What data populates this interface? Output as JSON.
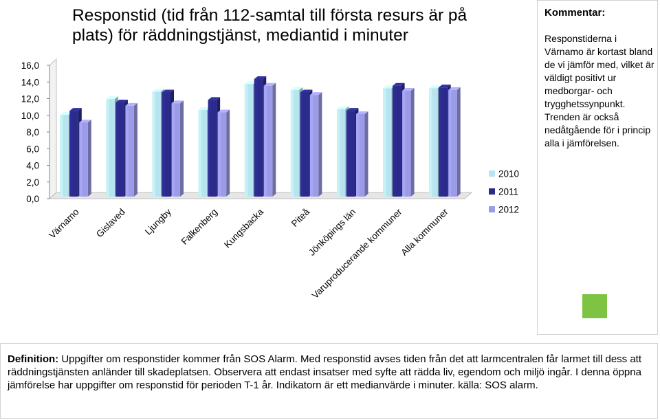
{
  "title": "Responstid (tid från 112-samtal till första resurs är på plats) för räddningstjänst, mediantid i minuter",
  "comment": {
    "heading": "Kommentar:",
    "text": "Responstiderna i Värnamo är kortast bland de vi jämför med, vilket är väldigt positivt ur medborgar- och trygghetssynpunkt. Trenden är också nedåtgående för i princip alla i jämförelsen.",
    "indicator_color": "#7cc442"
  },
  "definition": {
    "label": "Definition:",
    "text": "Uppgifter om responstider kommer från SOS Alarm. Med responstid avses tiden från det att larmcentralen får larmet till dess att räddningstjänsten anländer till skadeplatsen. Observera att endast insatser med syfte att rädda liv, egendom och miljö ingår. I denna öppna jämförelse har uppgifter om responstid för perioden T-1 år. Indikatorn är ett medianvärde i minuter. källa: SOS alarm."
  },
  "chart_data": {
    "type": "bar",
    "style": "3d-clustered-column",
    "categories": [
      "Värnamo",
      "Gislaved",
      "Ljungby",
      "Falkenberg",
      "Kungsbacka",
      "Piteå",
      "Jönköpings län",
      "Varuproducerande kommuner",
      "Alla kommuner"
    ],
    "series": [
      {
        "name": "2010",
        "color": "#b7e4ee",
        "values": [
          9.8,
          11.7,
          12.6,
          10.4,
          13.5,
          12.8,
          10.5,
          13.0,
          13.0
        ]
      },
      {
        "name": "2011",
        "color": "#2b2b8c",
        "values": [
          10.3,
          11.3,
          12.5,
          11.6,
          14.1,
          12.5,
          10.3,
          13.3,
          13.1
        ]
      },
      {
        "name": "2012",
        "color": "#9b9be8",
        "values": [
          8.9,
          10.9,
          11.2,
          10.1,
          13.3,
          12.2,
          9.9,
          12.7,
          12.8
        ]
      }
    ],
    "ylim": [
      0,
      16
    ],
    "yticks": [
      "0,0",
      "2,0",
      "4,0",
      "6,0",
      "8,0",
      "10,0",
      "12,0",
      "14,0",
      "16,0"
    ],
    "grid": false,
    "legend_position": "right"
  }
}
